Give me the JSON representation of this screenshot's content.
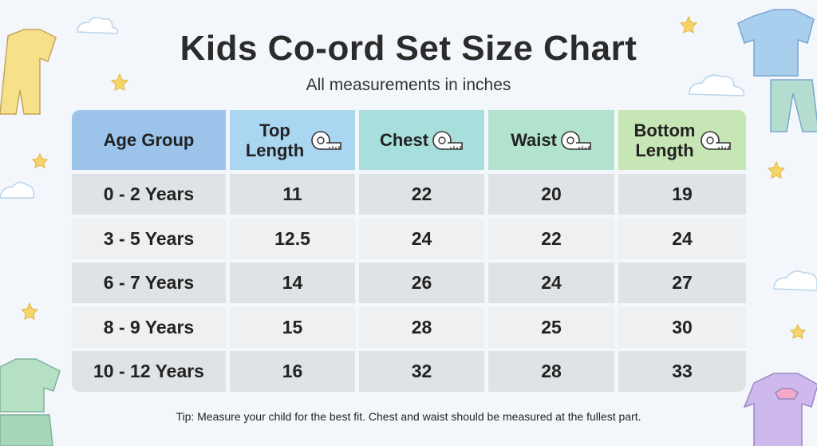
{
  "header": {
    "title": "Kids Co-ord Set Size Chart",
    "subtitle": "All measurements in inches"
  },
  "table": {
    "columns": [
      "Age Group",
      "Top Length",
      "Chest",
      "Waist",
      "Bottom Length"
    ],
    "rows": [
      [
        "0 - 2 Years",
        11,
        22,
        20,
        19
      ],
      [
        "3 - 5 Years",
        12.5,
        24,
        22,
        24
      ],
      [
        "6 - 7 Years",
        14,
        26,
        24,
        27
      ],
      [
        "8 - 9 Years",
        15,
        28,
        25,
        30
      ],
      [
        "10 - 12 Years",
        16,
        32,
        28,
        33
      ]
    ]
  },
  "footer": {
    "tip": "Tip: Measure your child for the best fit. Chest and waist should be measured at the fullest part."
  }
}
